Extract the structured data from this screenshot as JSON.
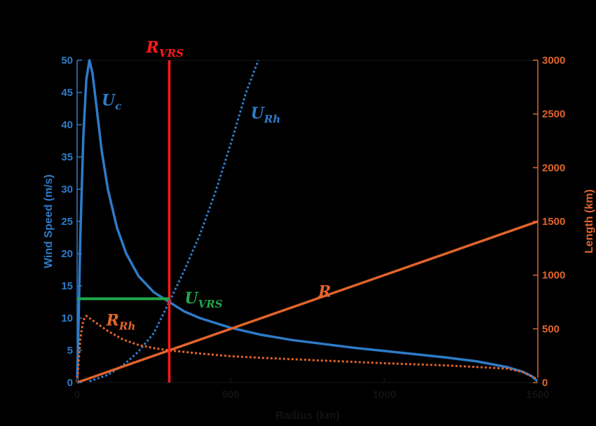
{
  "chart_data": {
    "type": "line",
    "xlabel": "Radius (km)",
    "ylabel_left": "Wind Speed (m/s)",
    "ylabel_right": "Length (km)",
    "xlim": [
      0,
      1500
    ],
    "ylim_left": [
      0,
      50
    ],
    "ylim_right": [
      0,
      3000
    ],
    "x_ticks": [
      0,
      500,
      1000,
      1500
    ],
    "y_left_ticks": [
      0,
      5,
      10,
      15,
      20,
      25,
      30,
      35,
      40,
      45,
      50
    ],
    "y_right_ticks": [
      0,
      500,
      1000,
      1500,
      2000,
      2500,
      3000
    ],
    "grid": false,
    "colors": {
      "blue": "#2E7BC8",
      "orange": "#E2642A",
      "red": "#FF1A1A",
      "green": "#1FA84A",
      "background": "#000000"
    },
    "series": [
      {
        "name": "U_c",
        "axis": "left",
        "style": "solid",
        "color": "#2E7BC8",
        "x": [
          0,
          5,
          10,
          20,
          30,
          40,
          50,
          60,
          80,
          100,
          130,
          160,
          200,
          250,
          300,
          350,
          400,
          500,
          600,
          700,
          800,
          900,
          1000,
          1100,
          1200,
          1300,
          1400,
          1450,
          1480,
          1500
        ],
        "y": [
          0,
          10,
          22,
          38,
          47,
          50,
          48,
          44,
          36,
          30,
          24,
          20,
          16.5,
          14,
          12.5,
          11,
          10,
          8.5,
          7.4,
          6.6,
          6.0,
          5.4,
          4.9,
          4.4,
          3.9,
          3.3,
          2.4,
          1.7,
          1.0,
          0.2
        ]
      },
      {
        "name": "U_Rh",
        "axis": "left",
        "style": "dotted",
        "color": "#2E7BC8",
        "x": [
          40,
          100,
          150,
          200,
          250,
          300,
          350,
          400,
          450,
          500,
          550,
          590
        ],
        "y": [
          0.2,
          1.2,
          2.7,
          4.8,
          7.7,
          12.5,
          17.5,
          23,
          29.5,
          37,
          45,
          50
        ]
      },
      {
        "name": "R",
        "axis": "right",
        "style": "solid",
        "color": "#E2642A",
        "x": [
          0,
          1500
        ],
        "y": [
          0,
          1500
        ]
      },
      {
        "name": "R_Rh",
        "axis": "right",
        "style": "dotted",
        "color": "#E2642A",
        "x": [
          0,
          5,
          10,
          20,
          30,
          50,
          80,
          100,
          150,
          200,
          250,
          300,
          400,
          500,
          600,
          800,
          1000,
          1200,
          1400,
          1450,
          1500
        ],
        "y": [
          0,
          200,
          400,
          580,
          620,
          580,
          520,
          480,
          400,
          350,
          320,
          300,
          270,
          245,
          230,
          205,
          180,
          160,
          130,
          100,
          30
        ]
      }
    ],
    "reference_lines": [
      {
        "name": "R_VRS",
        "type": "vertical",
        "x": 300,
        "color": "#FF1A1A"
      },
      {
        "name": "U_VRS",
        "type": "horizontal",
        "y": 13,
        "x_from": 0,
        "x_to": 300,
        "color": "#1FA84A"
      }
    ],
    "annotations": {
      "uc": {
        "main": "U",
        "sub": "c"
      },
      "urh": {
        "main": "U",
        "sub": "Rh"
      },
      "rvrs": {
        "main": "R",
        "sub": "VRS"
      },
      "uvrs": {
        "main": "U",
        "sub": "VRS"
      },
      "r": {
        "main": "R",
        "sub": ""
      },
      "rrh": {
        "main": "R",
        "sub": "Rh"
      }
    }
  }
}
